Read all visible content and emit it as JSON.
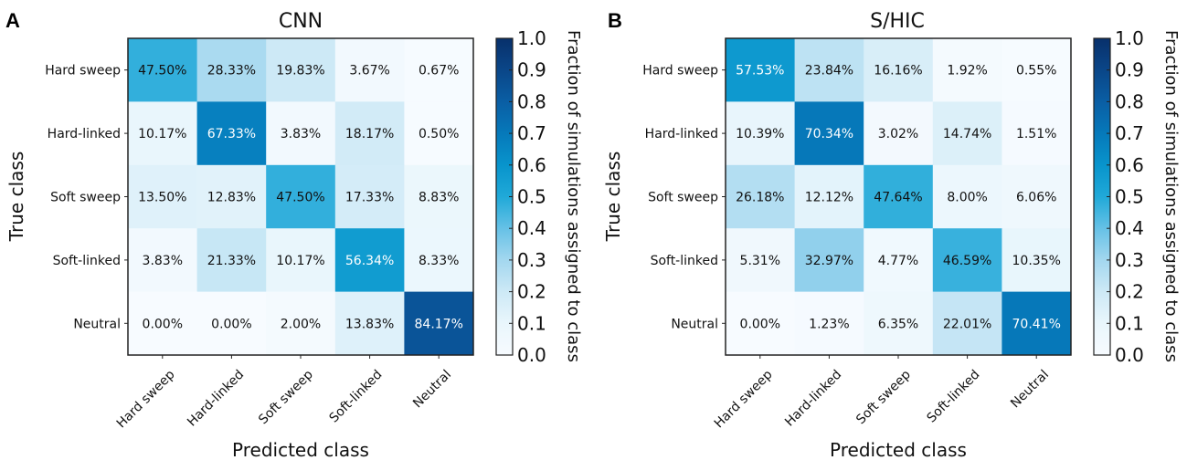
{
  "colors": {
    "low": "#f7fbff",
    "mid": "#04a6da",
    "high": "#08306b",
    "frame": "#222222"
  },
  "colormap_stops": [
    [
      0.0,
      "#f7fbff"
    ],
    [
      0.1,
      "#e9f6fc"
    ],
    [
      0.2,
      "#cde9f6"
    ],
    [
      0.3,
      "#a3d7ef"
    ],
    [
      0.4,
      "#66c1e6"
    ],
    [
      0.5,
      "#20a9d8"
    ],
    [
      0.6,
      "#0894cc"
    ],
    [
      0.7,
      "#0679ba"
    ],
    [
      0.8,
      "#0a5ea4"
    ],
    [
      0.9,
      "#0a4688"
    ],
    [
      1.0,
      "#08306b"
    ]
  ],
  "chart_data": [
    {
      "type": "heatmap",
      "panel": "A",
      "title": "CNN",
      "xlabel": "Predicted class",
      "ylabel": "True class",
      "rows": [
        "Hard sweep",
        "Hard-linked",
        "Soft sweep",
        "Soft-linked",
        "Neutral"
      ],
      "cols": [
        "Hard sweep",
        "Hard-linked",
        "Soft sweep",
        "Soft-linked",
        "Neutral"
      ],
      "values": [
        [
          0.475,
          0.2833,
          0.1983,
          0.0367,
          0.0067
        ],
        [
          0.1017,
          0.6733,
          0.0383,
          0.1817,
          0.005
        ],
        [
          0.135,
          0.1283,
          0.475,
          0.1733,
          0.0883
        ],
        [
          0.0383,
          0.2133,
          0.1017,
          0.5634,
          0.0833
        ],
        [
          0.0,
          0.0,
          0.02,
          0.1383,
          0.8417
        ]
      ],
      "labels": [
        [
          "47.50%",
          "28.33%",
          "19.83%",
          "3.67%",
          "0.67%"
        ],
        [
          "10.17%",
          "67.33%",
          "3.83%",
          "18.17%",
          "0.50%"
        ],
        [
          "13.50%",
          "12.83%",
          "47.50%",
          "17.33%",
          "8.83%"
        ],
        [
          "3.83%",
          "21.33%",
          "10.17%",
          "56.34%",
          "8.33%"
        ],
        [
          "0.00%",
          "0.00%",
          "2.00%",
          "13.83%",
          "84.17%"
        ]
      ],
      "colorbar": {
        "label": "Fraction of simulations assigned to class",
        "range": [
          0.0,
          1.0
        ],
        "ticks": [
          "0.0",
          "0.1",
          "0.2",
          "0.3",
          "0.4",
          "0.5",
          "0.6",
          "0.7",
          "0.8",
          "0.9",
          "1.0"
        ]
      }
    },
    {
      "type": "heatmap",
      "panel": "B",
      "title": "S/HIC",
      "xlabel": "Predicted class",
      "ylabel": "True class",
      "rows": [
        "Hard sweep",
        "Hard-linked",
        "Soft sweep",
        "Soft-linked",
        "Neutral"
      ],
      "cols": [
        "Hard sweep",
        "Hard-linked",
        "Soft sweep",
        "Soft-linked",
        "Neutral"
      ],
      "values": [
        [
          0.5753,
          0.2384,
          0.1616,
          0.0192,
          0.0055
        ],
        [
          0.1039,
          0.7034,
          0.0302,
          0.1474,
          0.0151
        ],
        [
          0.2618,
          0.1212,
          0.4764,
          0.08,
          0.0606
        ],
        [
          0.0531,
          0.3297,
          0.0477,
          0.4659,
          0.1035
        ],
        [
          0.0,
          0.0123,
          0.0635,
          0.2201,
          0.7041
        ]
      ],
      "labels": [
        [
          "57.53%",
          "23.84%",
          "16.16%",
          "1.92%",
          "0.55%"
        ],
        [
          "10.39%",
          "70.34%",
          "3.02%",
          "14.74%",
          "1.51%"
        ],
        [
          "26.18%",
          "12.12%",
          "47.64%",
          "8.00%",
          "6.06%"
        ],
        [
          "5.31%",
          "32.97%",
          "4.77%",
          "46.59%",
          "10.35%"
        ],
        [
          "0.00%",
          "1.23%",
          "6.35%",
          "22.01%",
          "70.41%"
        ]
      ],
      "colorbar": {
        "label": "Fraction of simulations assigned to class",
        "range": [
          0.0,
          1.0
        ],
        "ticks": [
          "0.0",
          "0.1",
          "0.2",
          "0.3",
          "0.4",
          "0.5",
          "0.6",
          "0.7",
          "0.8",
          "0.9",
          "1.0"
        ]
      }
    }
  ]
}
